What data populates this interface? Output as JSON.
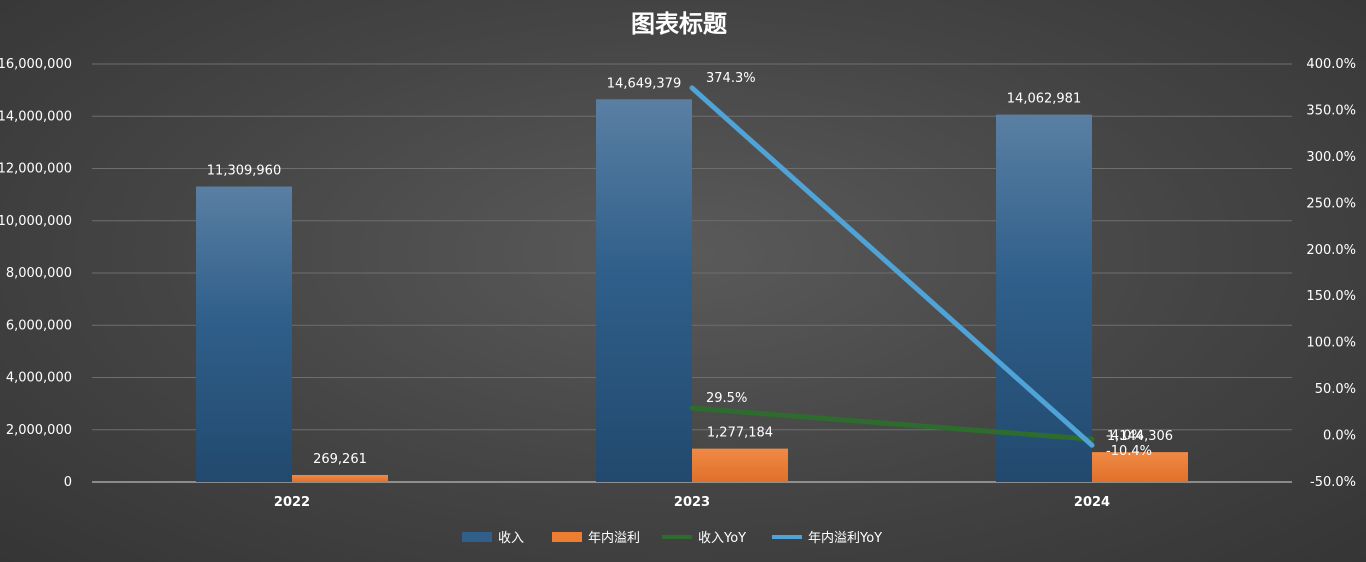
{
  "chart_data": {
    "type": "bar",
    "title": "图表标题",
    "categories": [
      "2022",
      "2023",
      "2024"
    ],
    "series": [
      {
        "name": "收入",
        "kind": "bar",
        "axis": "left",
        "color": "#2f5f8a",
        "values": [
          11309960,
          14649379,
          14062981
        ],
        "labels": [
          "11,309,960",
          "14,649,379",
          "14,062,981"
        ]
      },
      {
        "name": "年内溢利",
        "kind": "bar",
        "axis": "left",
        "color": "#ed7d31",
        "values": [
          269261,
          1277184,
          1144306
        ],
        "labels": [
          "269,261",
          "1,277,184",
          "1,144,306"
        ]
      },
      {
        "name": "收入YoY",
        "kind": "line",
        "axis": "right",
        "color": "#2e6b2e",
        "values": [
          null,
          29.5,
          -4.0
        ],
        "labels": [
          "",
          "29.5%",
          "-4.0%"
        ]
      },
      {
        "name": "年内溢利YoY",
        "kind": "line",
        "axis": "right",
        "color": "#4fa3d6",
        "values": [
          null,
          374.3,
          -10.4
        ],
        "labels": [
          "",
          "374.3%",
          "-10.4%"
        ]
      }
    ],
    "y_left": {
      "min": 0,
      "max": 16000000,
      "step": 2000000,
      "ticks": [
        "0",
        "2,000,000",
        "4,000,000",
        "6,000,000",
        "8,000,000",
        "10,000,000",
        "12,000,000",
        "14,000,000",
        "16,000,000"
      ]
    },
    "y_right": {
      "min": -50,
      "max": 400,
      "step": 50,
      "ticks": [
        "-50.0%",
        "0.0%",
        "50.0%",
        "100.0%",
        "150.0%",
        "200.0%",
        "250.0%",
        "300.0%",
        "350.0%",
        "400.0%"
      ]
    },
    "grid": true,
    "legend": "bottom"
  }
}
